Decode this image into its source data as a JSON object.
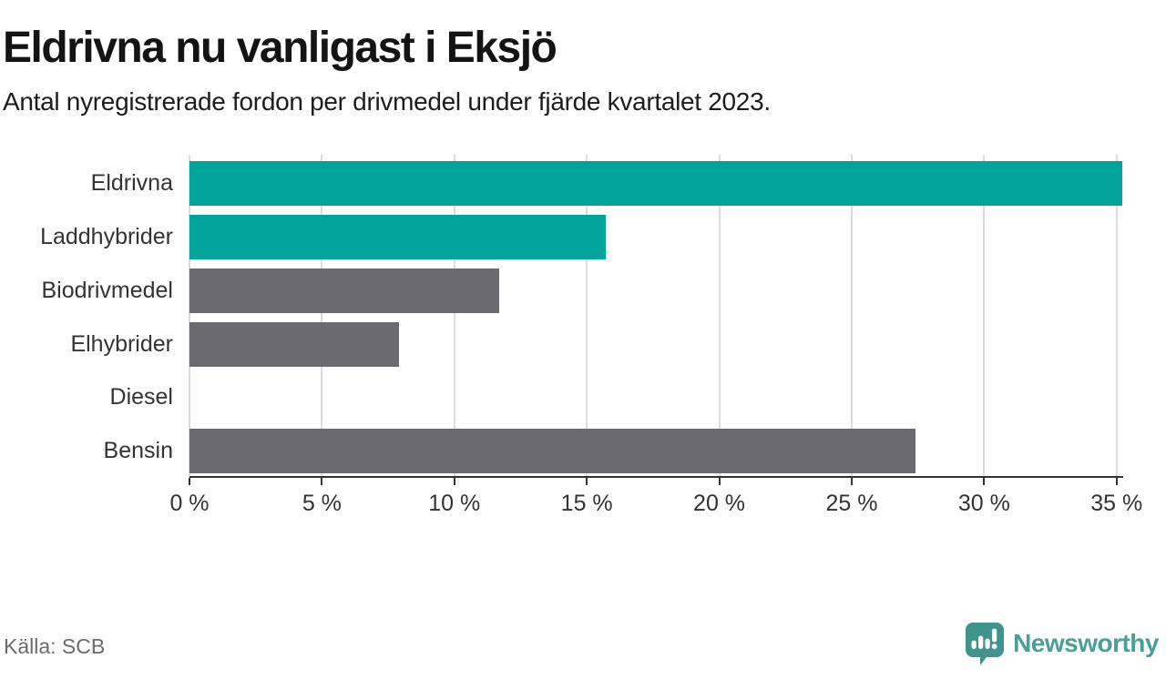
{
  "chart_data": {
    "type": "bar",
    "orientation": "horizontal",
    "title": "Eldrivna nu vanligast i Eksjö",
    "subtitle": "Antal nyregistrerade fordon per drivmedel under fjärde kvartalet 2023.",
    "categories": [
      "Eldrivna",
      "Laddhybrider",
      "Biodrivmedel",
      "Elhybrider",
      "Diesel",
      "Bensin"
    ],
    "values": [
      35.2,
      15.7,
      11.7,
      7.9,
      0,
      27.4
    ],
    "unit": "%",
    "xlim": [
      0,
      35.25
    ],
    "xticks": [
      {
        "value": 0,
        "label": "0 %"
      },
      {
        "value": 5,
        "label": "5 %"
      },
      {
        "value": 10,
        "label": "10 %"
      },
      {
        "value": 15,
        "label": "15 %"
      },
      {
        "value": 20,
        "label": "20 %"
      },
      {
        "value": 25,
        "label": "25 %"
      },
      {
        "value": 30,
        "label": "30 %"
      },
      {
        "value": 35,
        "label": "35 %"
      }
    ],
    "grid": true,
    "legend": false,
    "bar_colors": [
      "#00a49b",
      "#00a49b",
      "#6b6a71",
      "#6b6a71",
      "#6b6a71",
      "#6b6a71"
    ],
    "highlight_color": "#00a49b",
    "default_color": "#6b6a71"
  },
  "footer": {
    "source": "Källa: SCB",
    "brand": "Newsworthy"
  },
  "colors": {
    "grid": "#dcdcdc",
    "axis": "#333333",
    "label": "#333333",
    "logo_icon": "#3f948e",
    "logo_text": "#47a09a"
  }
}
